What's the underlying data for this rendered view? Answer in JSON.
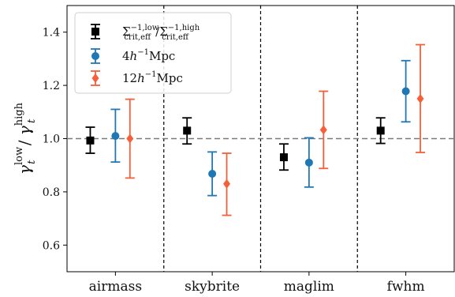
{
  "chart_data": {
    "type": "scatter",
    "categories": [
      "airmass",
      "skybrite",
      "maglim",
      "fwhm"
    ],
    "ylabel": "γ_t^low / γ_t^high",
    "ylim": [
      0.5,
      1.5
    ],
    "yticks": [
      "0.6",
      "0.8",
      "1.0",
      "1.2",
      "1.4"
    ],
    "reference_line": 1.0,
    "grid": false,
    "legend_position": "top-left",
    "series": [
      {
        "name": "Σ_crit,eff^(-1,low) / Σ_crit,eff^(-1,high)",
        "marker": "square",
        "color": "#000000",
        "values": [
          0.993,
          1.03,
          0.93,
          1.03
        ],
        "err_low": [
          0.945,
          0.98,
          0.882,
          0.982
        ],
        "err_high": [
          1.043,
          1.078,
          0.98,
          1.078
        ]
      },
      {
        "name": "4h^-1 Mpc",
        "marker": "circle",
        "color": "#1f77b4",
        "values": [
          1.01,
          0.868,
          0.91,
          1.178
        ],
        "err_low": [
          0.912,
          0.786,
          0.818,
          1.063
        ],
        "err_high": [
          1.11,
          0.95,
          1.003,
          1.293
        ]
      },
      {
        "name": "12h^-1 Mpc",
        "marker": "diamond",
        "color": "#f5603a",
        "values": [
          1.0,
          0.83,
          1.033,
          1.15
        ],
        "err_low": [
          0.852,
          0.712,
          0.888,
          0.948
        ],
        "err_high": [
          1.148,
          0.945,
          1.178,
          1.353
        ]
      }
    ]
  },
  "legend": {
    "entries": [
      {
        "base": "Σ",
        "sup": "−1,low",
        "sub": "crit,eff",
        "sep": "/",
        "base2": "Σ",
        "sup2": "−1,high",
        "sub2": "crit,eff"
      },
      {
        "prefix": "4",
        "h": "h",
        "sup": "−1",
        "unit": "Mpc"
      },
      {
        "prefix": "12",
        "h": "h",
        "sup": "−1",
        "unit": "Mpc"
      }
    ]
  },
  "ylabel_parts": {
    "gamma": "γ",
    "low": "low",
    "t": "t",
    "slash": "/",
    "high": "high"
  }
}
